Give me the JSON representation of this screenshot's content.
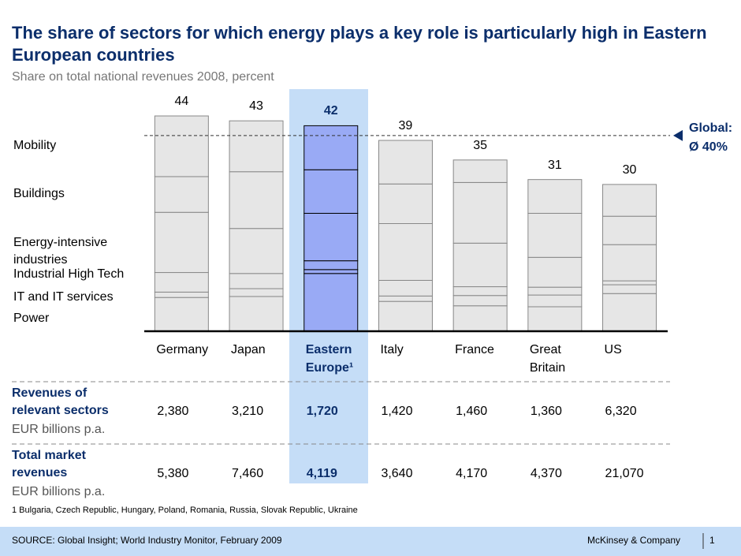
{
  "chart_data": {
    "type": "stacked_bar",
    "title": "The share of sectors for which energy plays a key role is particularly high in Eastern European countries",
    "subtitle": "Share on total national revenues 2008, percent",
    "categories": [
      "Germany",
      "Japan",
      "Eastern Europe¹",
      "Italy",
      "France",
      "Great Britain",
      "US"
    ],
    "series": [
      {
        "name": "Power",
        "color": "#e6e6e6",
        "values": [
          6.9,
          7.1,
          11.8,
          6.1,
          5.2,
          5.0,
          7.7
        ]
      },
      {
        "name": "IT and IT services",
        "color": "#e6e6e6",
        "values": [
          1.1,
          1.6,
          0.8,
          1.1,
          2.1,
          2.4,
          1.8
        ]
      },
      {
        "name": "Industrial High Tech",
        "color": "#e6e6e6",
        "values": [
          4.0,
          3.1,
          1.8,
          3.2,
          1.8,
          1.6,
          0.8
        ]
      },
      {
        "name": "Energy-intensive industries",
        "color": "#e6e6e6",
        "values": [
          12.3,
          9.2,
          9.7,
          11.6,
          8.9,
          6.1,
          7.4
        ]
      },
      {
        "name": "Buildings",
        "color": "#e6e6e6",
        "values": [
          7.3,
          11.6,
          8.9,
          8.1,
          12.4,
          9.0,
          5.8
        ]
      },
      {
        "name": "Mobility",
        "color": "#e6e6e6",
        "values": [
          12.4,
          10.4,
          9.0,
          8.9,
          4.6,
          6.9,
          6.5
        ]
      }
    ],
    "totals": [
      44,
      43,
      42,
      39,
      35,
      31,
      30
    ],
    "highlight_category": "Eastern Europe¹",
    "highlight_color": "#99aaf5",
    "ylim": [
      0,
      44
    ],
    "reference": {
      "label": "Global:",
      "value": 40,
      "value_label": "Ø 40%"
    }
  },
  "table": {
    "rows": [
      {
        "label": "Revenues of relevant sectors",
        "unit": "EUR billions p.a.",
        "values": [
          "2,380",
          "3,210",
          "1,720",
          "1,420",
          "1,460",
          "1,360",
          "6,320"
        ]
      },
      {
        "label": "Total market revenues",
        "unit": "EUR billions p.a.",
        "values": [
          "5,380",
          "7,460",
          "4,119",
          "3,640",
          "4,170",
          "4,370",
          "21,070"
        ]
      }
    ]
  },
  "footnote": "1 Bulgaria, Czech Republic, Hungary, Poland, Romania, Russia, Slovak Republic, Ukraine",
  "source": "SOURCE: Global Insight; World Industry Monitor, February 2009",
  "footer": {
    "company": "McKinsey & Company",
    "page": "1"
  }
}
